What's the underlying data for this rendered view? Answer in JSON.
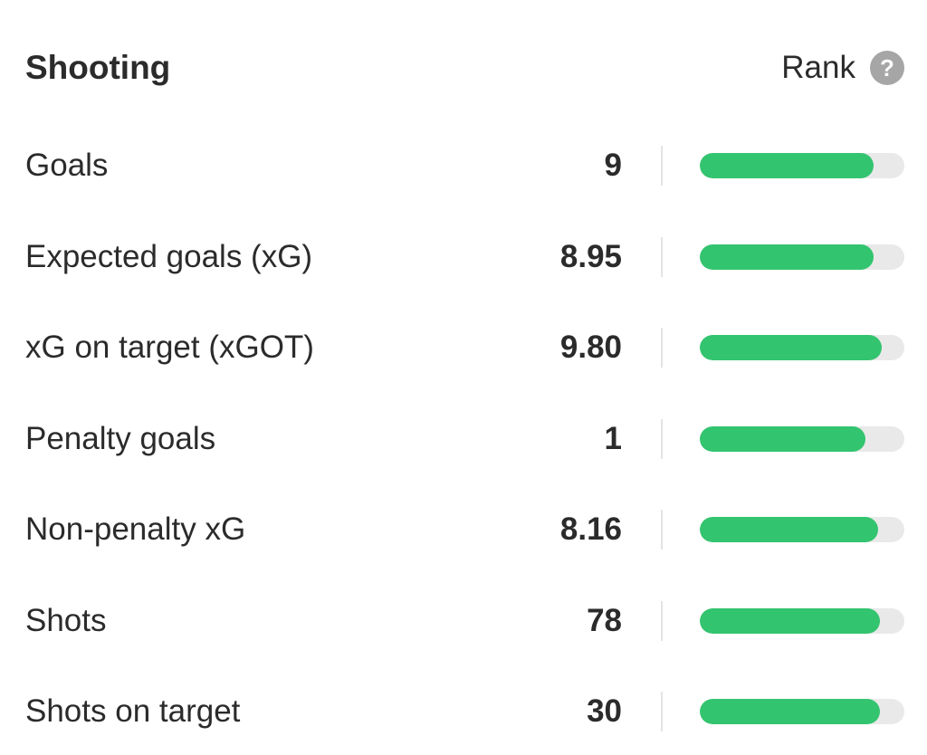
{
  "header": {
    "title": "Shooting",
    "rank_label": "Rank",
    "help_icon": "question-mark-circle-icon",
    "help_glyph": "?"
  },
  "colors": {
    "bar_fill": "#33c46f",
    "bar_track": "#e9e9e9",
    "text": "#2b2b2b",
    "help_icon_bg": "#a6a6a6"
  },
  "stats": [
    {
      "label": "Goals",
      "value": "9",
      "rank_fraction": 0.85
    },
    {
      "label": "Expected goals (xG)",
      "value": "8.95",
      "rank_fraction": 0.85
    },
    {
      "label": "xG on target (xGOT)",
      "value": "9.80",
      "rank_fraction": 0.89
    },
    {
      "label": "Penalty goals",
      "value": "1",
      "rank_fraction": 0.81
    },
    {
      "label": "Non-penalty xG",
      "value": "8.16",
      "rank_fraction": 0.87
    },
    {
      "label": "Shots",
      "value": "78",
      "rank_fraction": 0.88
    },
    {
      "label": "Shots on target",
      "value": "30",
      "rank_fraction": 0.88
    }
  ]
}
